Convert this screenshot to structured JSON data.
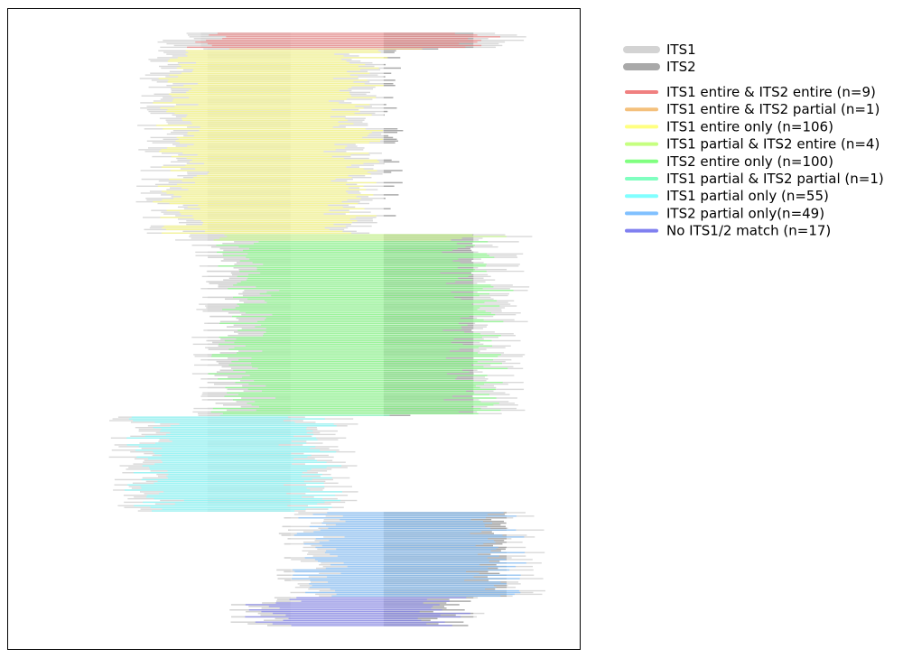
{
  "chart_data": {
    "type": "bar",
    "title": "",
    "xlabel": "",
    "ylabel": "",
    "axes_visible": false,
    "grid": false,
    "legend_placement": "right",
    "x_range": [
      -0.1,
      1.62
    ],
    "region_legend": [
      {
        "name": "ITS1",
        "color": "#d3d3d3"
      },
      {
        "name": "ITS2",
        "color": "#a9a9a9"
      }
    ],
    "categories": [
      {
        "label": "ITS1 entire & ITS2 entire (n=9)",
        "count": 9,
        "color": "#f08080"
      },
      {
        "label": "ITS1 entire & ITS2 partial (n=1)",
        "count": 1,
        "color": "#f4c07c"
      },
      {
        "label": "ITS1 entire only (n=106)",
        "count": 106,
        "color": "#ffff80"
      },
      {
        "label": "ITS1 partial & ITS2 entire (n=4)",
        "count": 4,
        "color": "#c6ff80"
      },
      {
        "label": "ITS2 entire only (n=100)",
        "count": 100,
        "color": "#80ff80"
      },
      {
        "label": "ITS1 partial & ITS2 partial (n=1)",
        "count": 1,
        "color": "#80ffc0"
      },
      {
        "label": "ITS1 partial only (n=55)",
        "count": 55,
        "color": "#80ffff"
      },
      {
        "label": "ITS2 partial only(n=49)",
        "count": 49,
        "color": "#80c0ff"
      },
      {
        "label": "No ITS1/2 match (n=17)",
        "count": 17,
        "color": "#8080f0"
      }
    ],
    "group_spans": [
      {
        "x": [
          0.38,
          1.4
        ],
        "its1": [
          0.48,
          0.75
        ],
        "its2": [
          1.03,
          1.3
        ]
      },
      {
        "x": [
          0.38,
          1.2
        ],
        "its1": [
          0.5,
          0.75
        ],
        "its2": [
          1.03,
          1.3
        ]
      },
      {
        "x": [
          0.33,
          1.0
        ],
        "its1": [
          0.5,
          0.75
        ],
        "its2": [
          1.03,
          1.3
        ]
      },
      {
        "x": [
          0.38,
          1.4
        ],
        "its1": [
          0.5,
          0.75
        ],
        "its2": [
          1.03,
          1.3
        ]
      },
      {
        "x": [
          0.5,
          1.38
        ],
        "its1": [
          0.5,
          0.75
        ],
        "its2": [
          1.03,
          1.3
        ]
      },
      {
        "x": [
          0.4,
          1.15
        ],
        "its1": [
          0.5,
          0.75
        ],
        "its2": [
          1.03,
          1.3
        ]
      },
      {
        "x": [
          0.25,
          0.87
        ],
        "its1": [
          0.5,
          0.75
        ],
        "its2": [
          1.03,
          1.3
        ]
      },
      {
        "x": [
          0.75,
          1.43
        ],
        "its1": [
          0.4,
          0.75
        ],
        "its2": [
          1.03,
          1.4
        ]
      },
      {
        "x": [
          0.6,
          1.25
        ],
        "its1": [
          0.45,
          0.75
        ],
        "its2": [
          1.03,
          1.3
        ]
      }
    ]
  }
}
